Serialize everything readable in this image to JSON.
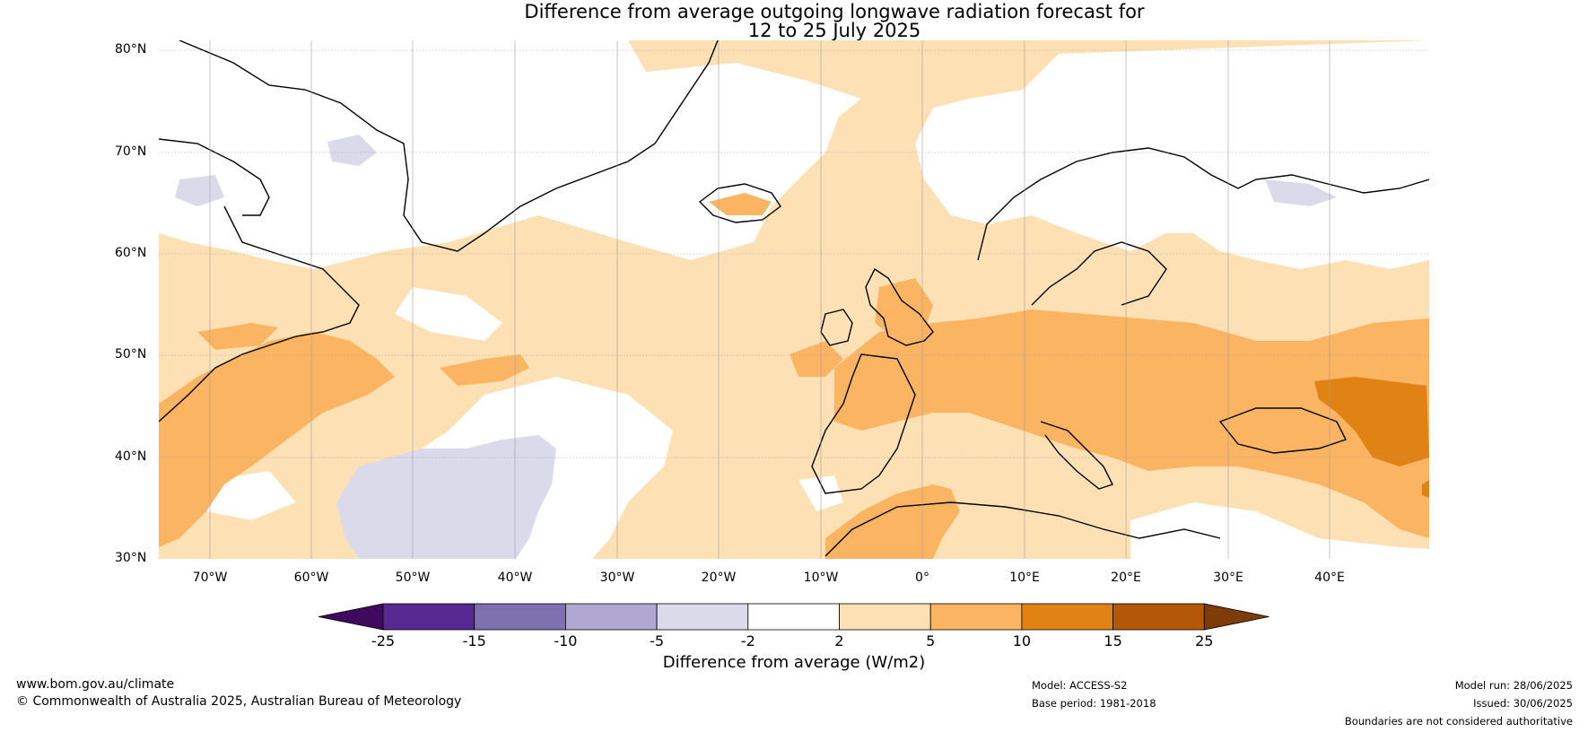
{
  "title_line1": "Difference from average outgoing longwave radiation forecast for",
  "title_line2": "12 to 25 July 2025",
  "lat_labels": [
    "80°N",
    "70°N",
    "60°N",
    "50°N",
    "40°N",
    "30°N"
  ],
  "lon_labels": [
    "70°W",
    "60°W",
    "50°W",
    "40°W",
    "30°W",
    "20°W",
    "10°W",
    "0°",
    "10°E",
    "20°E",
    "30°E",
    "40°E"
  ],
  "colorbar": {
    "ticks": [
      "-25",
      "-15",
      "-10",
      "-5",
      "-2",
      "2",
      "5",
      "10",
      "15",
      "25"
    ],
    "colors": [
      "#3f0a5c",
      "#57288f",
      "#7f70b0",
      "#b0a8d3",
      "#dadaeb",
      "#ffffff",
      "#fde0b3",
      "#fbb462",
      "#e08214",
      "#b35806",
      "#7f3b08"
    ],
    "label": "Difference from average (W/m2)"
  },
  "map_colors": {
    "land_outline": "#000000",
    "border": "#808080",
    "grid": "#a0a0a0"
  },
  "footer": {
    "website": "www.bom.gov.au/climate",
    "copyright": "© Commonwealth of Australia 2025, Australian Bureau of Meteorology",
    "model": "Model: ACCESS-S2",
    "base_period": "Base period: 1981-2018",
    "model_run": "Model run: 28/06/2025",
    "issued": "Issued: 30/06/2025",
    "disclaimer": "Boundaries are not considered authoritative"
  }
}
